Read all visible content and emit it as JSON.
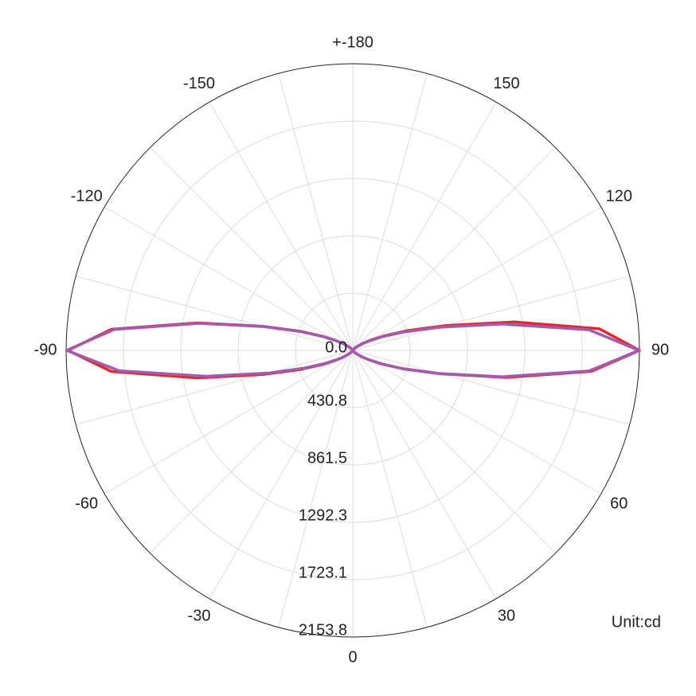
{
  "chart_data": {
    "type": "polar",
    "unit_label": "Unit:cd",
    "x": [
      -180,
      -175,
      -170,
      -165,
      -160,
      -155,
      -150,
      -145,
      -140,
      -135,
      -130,
      -125,
      -120,
      -115,
      -110,
      -105,
      -100,
      -95,
      -90,
      -85,
      -80,
      -75,
      -70,
      -65,
      -60,
      -55,
      -50,
      -45,
      -40,
      -35,
      -30,
      -25,
      -20,
      -15,
      -10,
      -5,
      0,
      5,
      10,
      15,
      20,
      25,
      30,
      35,
      40,
      45,
      50,
      55,
      60,
      65,
      70,
      75,
      80,
      85,
      90,
      95,
      100,
      105,
      110,
      115,
      120,
      125,
      130,
      135,
      140,
      145,
      150,
      155,
      160,
      165,
      170,
      175,
      180
    ],
    "series": [
      {
        "color": "#e8262a",
        "values": [
          0,
          0,
          0,
          0,
          0,
          0,
          0,
          5,
          15,
          30,
          50,
          90,
          150,
          250,
          420,
          700,
          1190,
          1820,
          2140,
          1820,
          1190,
          700,
          420,
          250,
          150,
          90,
          50,
          30,
          15,
          5,
          0,
          0,
          0,
          0,
          0,
          0,
          0,
          0,
          0,
          0,
          0,
          0,
          0,
          5,
          14,
          28,
          48,
          88,
          145,
          245,
          410,
          680,
          1170,
          1800,
          2153.8,
          1860,
          1230,
          720,
          430,
          255,
          155,
          92,
          52,
          30,
          15,
          5,
          0,
          0,
          0,
          0,
          0,
          0,
          0
        ]
      },
      {
        "color": "#a35bb0",
        "values": [
          0,
          0,
          0,
          0,
          0,
          0,
          0,
          5,
          14,
          27,
          47,
          88,
          145,
          245,
          410,
          690,
          1170,
          1800,
          2150,
          1760,
          1120,
          660,
          390,
          235,
          140,
          85,
          45,
          25,
          12,
          4,
          0,
          0,
          0,
          0,
          0,
          0,
          0,
          0,
          0,
          0,
          0,
          0,
          0,
          4,
          12,
          25,
          45,
          85,
          140,
          240,
          400,
          670,
          1140,
          1780,
          2150,
          1780,
          1140,
          670,
          400,
          240,
          140,
          85,
          45,
          25,
          12,
          4,
          0,
          0,
          0,
          0,
          0,
          0,
          0
        ]
      }
    ],
    "xticks": [
      0,
      30,
      60,
      90,
      120,
      150,
      {
        "value": 180,
        "label": "+-180"
      },
      -150,
      -120,
      -90,
      -60,
      -30
    ],
    "xminorticks": [
      15,
      45,
      75,
      105,
      135,
      165,
      -165,
      -135,
      -105,
      -75,
      -45,
      -15
    ],
    "ylim": [
      0,
      2153.8
    ],
    "yticks": [
      {
        "value": 0,
        "label": "0.0"
      },
      430.8,
      861.5,
      1292.3,
      1723.1,
      2153.8
    ],
    "grid": true
  }
}
